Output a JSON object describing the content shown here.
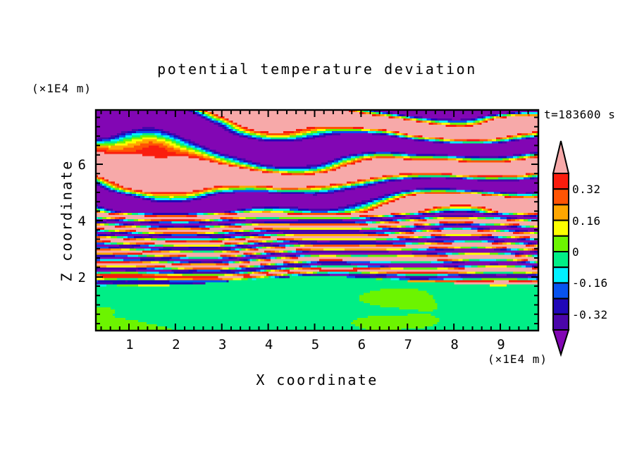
{
  "title": "potential temperature deviation",
  "timestamp_label": "t=183600 s",
  "axes": {
    "x": {
      "label": "X coordinate",
      "unit_label": "(×1E4 m)",
      "tick_labels": [
        "1",
        "2",
        "3",
        "4",
        "5",
        "6",
        "7",
        "8",
        "9"
      ]
    },
    "z": {
      "label": "Z coordinate",
      "unit_label": "(×1E4 m)",
      "tick_labels": [
        "6",
        "4",
        "2"
      ]
    }
  },
  "colorbar": {
    "tick_labels": [
      "0.32",
      "0.16",
      "0",
      "-0.16",
      "-0.32"
    ],
    "over_color": "#F7A9A9",
    "under_color": "#8206B4"
  },
  "chart_data": {
    "type": "heatmap",
    "title": "potential temperature deviation",
    "xlabel": "X coordinate (×1E4 m)",
    "ylabel": "Z coordinate (×1E4 m)",
    "time_label": "t=183600 s",
    "time_seconds": 183600,
    "x_range": [
      0.3,
      9.8
    ],
    "z_range": [
      0.1,
      8.0
    ],
    "x_major_ticks": [
      1,
      2,
      3,
      4,
      5,
      6,
      7,
      8,
      9
    ],
    "z_major_ticks": [
      2,
      4,
      6
    ],
    "contour_interval": 0.08,
    "levels": [
      -0.4,
      -0.32,
      -0.24,
      -0.16,
      -0.08,
      0,
      0.08,
      0.16,
      0.24,
      0.32,
      0.4
    ],
    "colorbar_labelled_levels": [
      0.32,
      0.16,
      0,
      -0.16,
      -0.32
    ],
    "palette": {
      "colors_low_to_high": [
        "#8206B4",
        "#4A06AA",
        "#2008B8",
        "#0853F0",
        "#00F0FF",
        "#00EE86",
        "#6CF400",
        "#FCFF00",
        "#FFA600",
        "#FF5404",
        "#FA1D0E",
        "#F7A9A9"
      ],
      "bin_ranges": [
        "<-0.40",
        "-0.40..-0.32",
        "-0.32..-0.24",
        "-0.24..-0.16",
        "-0.16..-0.08",
        "-0.08..0",
        "0..0.08",
        "0.08..0.16",
        "0.16..0.24",
        "0.24..0.32",
        "0.32..0.40",
        ">0.40"
      ]
    },
    "legend_position": "right vertical colorbar with over/under arrow tips",
    "grid": false,
    "field_description": "Filled-contour vertical cross-section of potential temperature deviation. Upper ~60% of the domain (z above ~2×1E4 m) is dominated by alternating wavy horizontal bands saturated beyond the color scale: salmon-pink (>0.40) and violet-purple (<-0.40), separated by thin rainbow transition filaments (red/orange/yellow/cyan/blue) and embedded navy/cyan blobs. A middle strip near z≈2.5-4×1E4 m contains dense thin streaks spanning the whole palette. Below z≈2×1E4 m the field is near zero: spring-green (-0.08..0) background with large smooth chartreuse (0..0.08) swirls."
  }
}
